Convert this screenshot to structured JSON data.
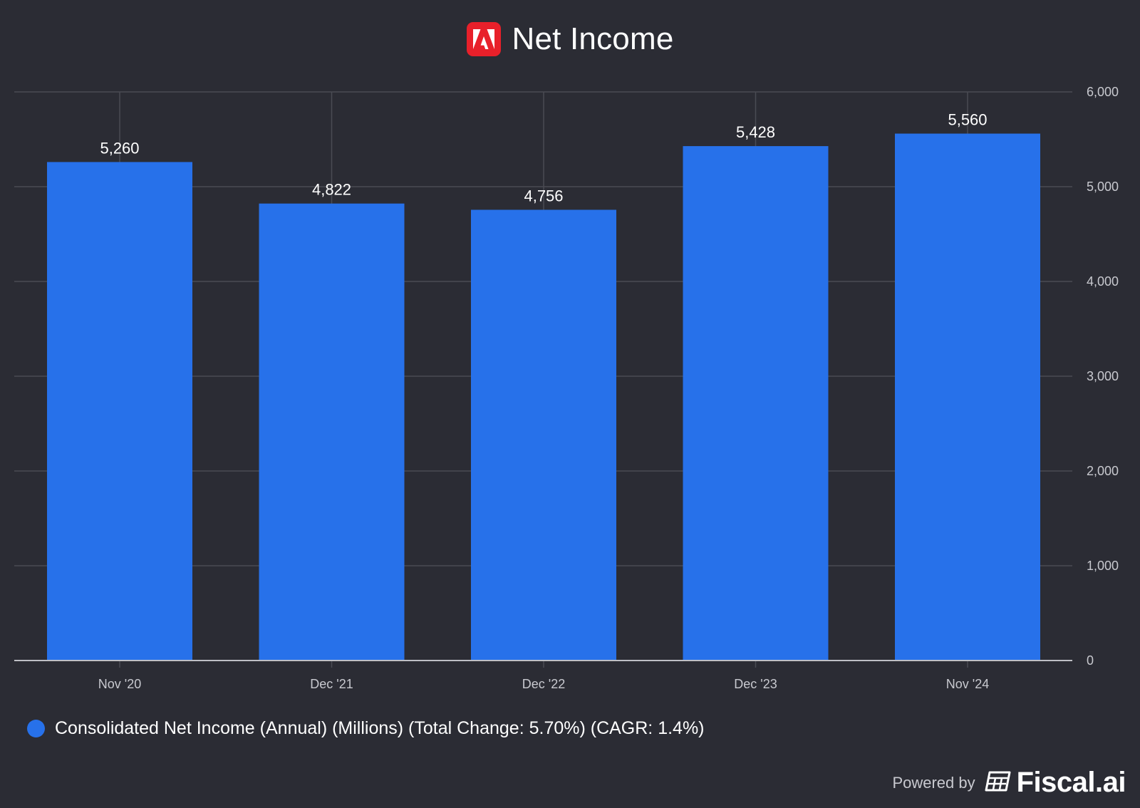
{
  "header": {
    "title": "Net Income",
    "logo_icon": "adobe-logo-icon",
    "logo_color": "#e8202a"
  },
  "chart_data": {
    "type": "bar",
    "categories": [
      "Nov '20",
      "Dec '21",
      "Dec '22",
      "Dec '23",
      "Nov '24"
    ],
    "series": [
      {
        "name": "Consolidated Net Income (Annual) (Millions) (Total Change: 5.70%) (CAGR: 1.4%)",
        "values": [
          5260,
          4822,
          4756,
          5428,
          5560
        ],
        "color": "#2771ea"
      }
    ],
    "data_labels": [
      "5,260",
      "4,822",
      "4,756",
      "5,428",
      "5,560"
    ],
    "y_ticks": [
      "0",
      "1,000",
      "2,000",
      "3,000",
      "4,000",
      "5,000",
      "6,000"
    ],
    "ylim": [
      0,
      6000
    ],
    "y_axis_side": "right",
    "grid": true,
    "legend_position": "bottom-left",
    "title": "Net Income",
    "xlabel": "",
    "ylabel": ""
  },
  "footer": {
    "powered_by": "Powered by",
    "brand": "Fiscal.ai",
    "brand_icon": "fiscal-ai-logo-icon"
  }
}
